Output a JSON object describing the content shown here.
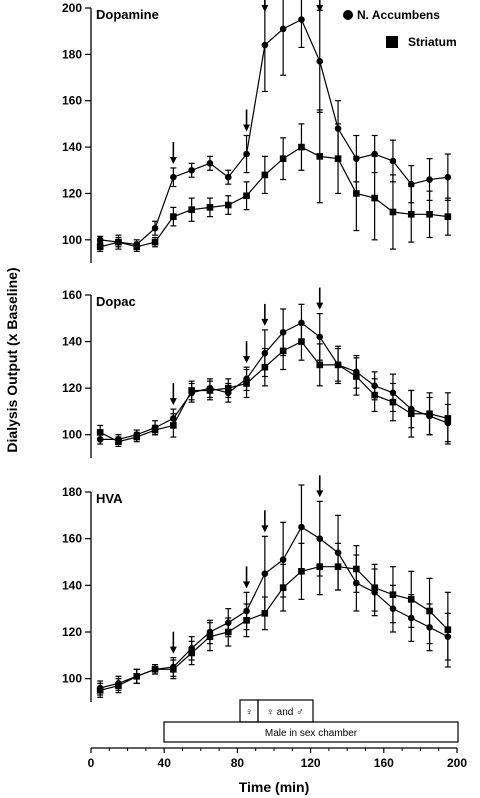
{
  "chart_data": {
    "type": "line",
    "ylabel": "Dialysis Output (x Baseline)",
    "xlabel": "Time (min)",
    "xlim": [
      0,
      200
    ],
    "xticks": [
      0,
      40,
      80,
      120,
      160,
      200
    ],
    "legend": {
      "placement": "top-right",
      "entries": [
        "N. Accumbens",
        "Striatum"
      ]
    },
    "timeline": {
      "label1": "♀",
      "label2": "♀ and ♂",
      "bar_label": "Male in sex chamber"
    },
    "panels": [
      {
        "title": "Dopamine",
        "ylim": [
          90,
          200
        ],
        "yticks": [
          100,
          120,
          140,
          160,
          180,
          200
        ],
        "arrows": [
          45,
          85,
          95,
          125
        ],
        "series": [
          {
            "name": "N. Accumbens",
            "marker": "circle",
            "x": [
              5,
              15,
              25,
              35,
              45,
              55,
              65,
              75,
              85,
              95,
              105,
              115,
              125,
              135,
              145,
              155,
              165,
              175,
              185,
              195
            ],
            "y": [
              100,
              99,
              98,
              105,
              127,
              130,
              133,
              127,
              137,
              184,
              191,
              195,
              177,
              148,
              135,
              137,
              134,
              124,
              126,
              127
            ],
            "err": [
              1.5,
              2,
              2,
              3,
              4,
              3,
              3,
              3,
              8,
              20,
              20,
              12,
              22,
              12,
              10,
              8,
              9,
              8,
              9,
              10
            ]
          },
          {
            "name": "Striatum",
            "marker": "square",
            "x": [
              5,
              15,
              25,
              35,
              45,
              55,
              65,
              75,
              85,
              95,
              105,
              115,
              125,
              135,
              145,
              155,
              165,
              175,
              185,
              195
            ],
            "y": [
              97,
              99,
              97,
              99,
              110,
              113,
              114,
              115,
              119,
              128,
              135,
              140,
              136,
              135,
              120,
              118,
              112,
              111,
              111,
              110
            ],
            "err": [
              2,
              3,
              2,
              2,
              4,
              5,
              4,
              4,
              6,
              8,
              9,
              10,
              20,
              15,
              16,
              18,
              16,
              12,
              10,
              8
            ]
          }
        ]
      },
      {
        "title": "Dopac",
        "ylim": [
          90,
          160
        ],
        "yticks": [
          100,
          120,
          140,
          160
        ],
        "arrows": [
          45,
          85,
          95,
          125
        ],
        "series": [
          {
            "name": "N. Accumbens",
            "marker": "circle",
            "x": [
              5,
              15,
              25,
              35,
              45,
              55,
              65,
              75,
              85,
              95,
              105,
              115,
              125,
              135,
              145,
              155,
              165,
              175,
              185,
              195
            ],
            "y": [
              98,
              98,
              100,
              103,
              107,
              118,
              120,
              118,
              124,
              135,
              144,
              148,
              142,
              130,
              127,
              121,
              118,
              111,
              108,
              105
            ],
            "err": [
              2,
              2,
              2,
              3,
              4,
              4,
              4,
              4,
              5,
              10,
              10,
              8,
              10,
              7,
              7,
              6,
              8,
              8,
              8,
              8
            ]
          },
          {
            "name": "Striatum",
            "marker": "square",
            "x": [
              5,
              15,
              25,
              35,
              45,
              55,
              65,
              75,
              85,
              95,
              105,
              115,
              125,
              135,
              145,
              155,
              165,
              175,
              185,
              195
            ],
            "y": [
              101,
              97,
              99,
              102,
              104,
              119,
              119,
              120,
              122,
              129,
              136,
              140,
              130,
              130,
              125,
              117,
              114,
              109,
              109,
              107
            ],
            "err": [
              3,
              2,
              2,
              2,
              5,
              4,
              4,
              4,
              6,
              8,
              8,
              8,
              9,
              8,
              8,
              7,
              8,
              10,
              9,
              11
            ]
          }
        ]
      },
      {
        "title": "HVA",
        "ylim": [
          90,
          180
        ],
        "yticks": [
          100,
          120,
          140,
          160,
          180
        ],
        "arrows": [
          45,
          85,
          95,
          125
        ],
        "series": [
          {
            "name": "N. Accumbens",
            "marker": "circle",
            "x": [
              5,
              15,
              25,
              35,
              45,
              55,
              65,
              75,
              85,
              95,
              105,
              115,
              125,
              135,
              145,
              155,
              165,
              175,
              185,
              195
            ],
            "y": [
              96,
              98,
              101,
              104,
              105,
              113,
              120,
              124,
              129,
              145,
              151,
              165,
              160,
              154,
              141,
              137,
              130,
              126,
              122,
              118
            ],
            "err": [
              3,
              3,
              3,
              2,
              4,
              5,
              5,
              6,
              8,
              16,
              16,
              18,
              16,
              16,
              12,
              10,
              10,
              10,
              10,
              10
            ]
          },
          {
            "name": "Striatum",
            "marker": "square",
            "x": [
              5,
              15,
              25,
              35,
              45,
              55,
              65,
              75,
              85,
              95,
              105,
              115,
              125,
              135,
              145,
              155,
              165,
              175,
              185,
              195
            ],
            "y": [
              95,
              97,
              101,
              104,
              104,
              111,
              118,
              120,
              125,
              128,
              139,
              146,
              148,
              148,
              147,
              139,
              136,
              134,
              129,
              121
            ],
            "err": [
              3,
              3,
              3,
              2,
              4,
              5,
              6,
              6,
              7,
              7,
              10,
              12,
              12,
              10,
              10,
              10,
              12,
              12,
              14,
              16
            ]
          }
        ]
      }
    ]
  }
}
